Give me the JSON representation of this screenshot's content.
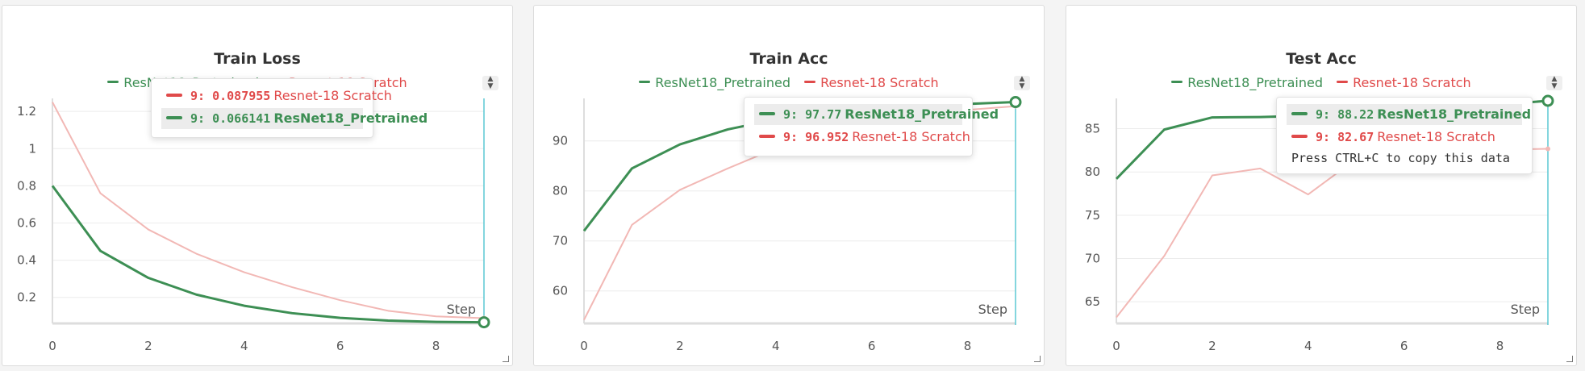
{
  "colors": {
    "pretrained": "#3d8f54",
    "scratch": "#e04a4a",
    "scratch_line": "#f2b8b5",
    "cursor": "#5bc8d4"
  },
  "chart_data": [
    {
      "type": "line",
      "title": "Train Loss",
      "xlabel": "Step",
      "x": [
        0,
        1,
        2,
        3,
        4,
        5,
        6,
        7,
        8,
        9
      ],
      "xlim": [
        0,
        9
      ],
      "ylim": [
        0.06,
        1.27
      ],
      "xticks": [
        "0",
        "2",
        "4",
        "6",
        "8"
      ],
      "yticks": [
        "0.2",
        "0.4",
        "0.6",
        "0.8",
        "1",
        "1.2"
      ],
      "series": [
        {
          "name": "ResNet18_Pretrained",
          "values": [
            0.8,
            0.45,
            0.305,
            0.215,
            0.155,
            0.115,
            0.09,
            0.075,
            0.068,
            0.066141
          ]
        },
        {
          "name": "Resnet-18 Scratch",
          "values": [
            1.25,
            0.76,
            0.565,
            0.435,
            0.335,
            0.255,
            0.185,
            0.128,
            0.098,
            0.087955
          ]
        }
      ],
      "tooltip": {
        "rows": [
          {
            "series": "Resnet-18 Scratch",
            "label": "9: 0.087955",
            "name": "Resnet-18 Scratch",
            "highlight": false
          },
          {
            "series": "ResNet18_Pretrained",
            "label": "9: 0.066141",
            "name": "ResNet18_Pretrained",
            "highlight": true
          }
        ],
        "note": ""
      }
    },
    {
      "type": "line",
      "title": "Train Acc",
      "xlabel": "Step",
      "x": [
        0,
        1,
        2,
        3,
        4,
        5,
        6,
        7,
        8,
        9
      ],
      "xlim": [
        0,
        9
      ],
      "ylim": [
        53.5,
        98.5
      ],
      "xticks": [
        "0",
        "2",
        "4",
        "6",
        "8"
      ],
      "yticks": [
        "60",
        "70",
        "80",
        "90"
      ],
      "series": [
        {
          "name": "ResNet18_Pretrained",
          "values": [
            72,
            84.5,
            89.3,
            92.3,
            94.3,
            95.6,
            96.4,
            97.0,
            97.4,
            97.77
          ]
        },
        {
          "name": "Resnet-18 Scratch",
          "values": [
            54.2,
            73.2,
            80.2,
            84.5,
            88.5,
            91.3,
            93.5,
            95.1,
            96.2,
            96.952
          ]
        }
      ],
      "tooltip": {
        "rows": [
          {
            "series": "ResNet18_Pretrained",
            "label": "9: 97.77",
            "name": "ResNet18_Pretrained",
            "highlight": true
          },
          {
            "series": "Resnet-18 Scratch",
            "label": "9: 96.952",
            "name": "Resnet-18 Scratch",
            "highlight": false
          }
        ],
        "note": ""
      }
    },
    {
      "type": "line",
      "title": "Test Acc",
      "xlabel": "Step",
      "x": [
        0,
        1,
        2,
        3,
        4,
        5,
        6,
        7,
        8,
        9
      ],
      "xlim": [
        0,
        9
      ],
      "ylim": [
        62.5,
        88.5
      ],
      "xticks": [
        "0",
        "2",
        "4",
        "6",
        "8"
      ],
      "yticks": [
        "65",
        "70",
        "75",
        "80",
        "85"
      ],
      "series": [
        {
          "name": "ResNet18_Pretrained",
          "values": [
            79.2,
            84.9,
            86.3,
            86.35,
            86.5,
            86.9,
            87.2,
            87.5,
            87.8,
            88.22
          ]
        },
        {
          "name": "Resnet-18 Scratch",
          "values": [
            63.2,
            70.3,
            79.6,
            80.4,
            77.4,
            81.5,
            82.3,
            82.5,
            82.6,
            82.67
          ]
        }
      ],
      "tooltip": {
        "rows": [
          {
            "series": "ResNet18_Pretrained",
            "label": "9: 88.22",
            "name": "ResNet18_Pretrained",
            "highlight": true
          },
          {
            "series": "Resnet-18 Scratch",
            "label": "9: 82.67",
            "name": "Resnet-18 Scratch",
            "highlight": false
          }
        ],
        "note": "Press CTRL+C to copy this data"
      }
    }
  ]
}
